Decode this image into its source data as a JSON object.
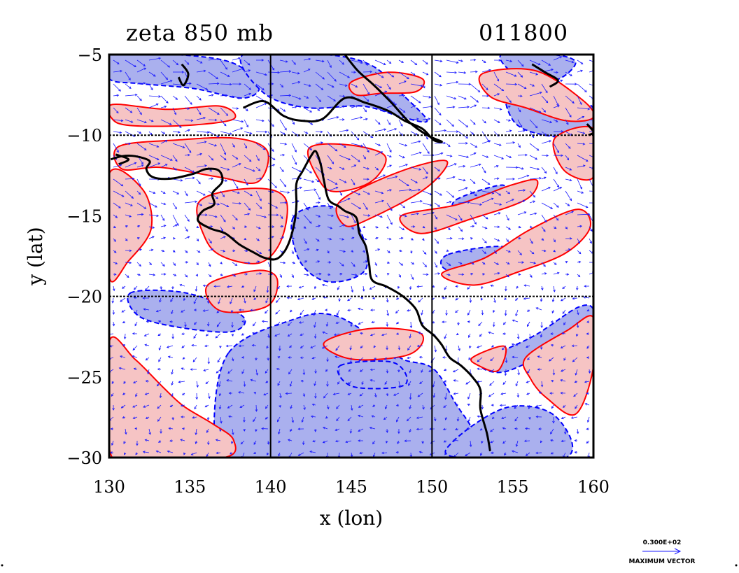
{
  "title": {
    "field": "zeta 850 mb",
    "time": "011800"
  },
  "axes": {
    "xlabel": "x (lon)",
    "ylabel": "y (lat)",
    "xlim": [
      130,
      160
    ],
    "ylim": [
      -30,
      -5
    ],
    "xticks": [
      "130",
      "135",
      "140",
      "145",
      "150",
      "155",
      "160"
    ],
    "yticks": [
      "−5",
      "−10",
      "−15",
      "−20",
      "−25",
      "−30"
    ],
    "grid_lon": [
      140,
      150
    ],
    "grid_lat": [
      -10,
      -20
    ]
  },
  "legend": {
    "value": "0.300E+02",
    "caption": "MAXIMUM VECTOR"
  },
  "colors": {
    "positive_fill": "#f6c4c4",
    "positive_line": "#ff0000",
    "negative_fill": "#aab0ee",
    "negative_line": "#0000ff",
    "vector": "#1a1aff",
    "coast": "#000000"
  },
  "coastline": [
    [
      130.1,
      -11.5
    ],
    [
      130.8,
      -11.3
    ],
    [
      131.6,
      -11.3
    ],
    [
      132.5,
      -11.6
    ],
    [
      132.3,
      -12.1
    ],
    [
      132.7,
      -12.6
    ],
    [
      133.8,
      -12.7
    ],
    [
      135.2,
      -12.4
    ],
    [
      136.0,
      -12.1
    ],
    [
      136.8,
      -12.2
    ],
    [
      137.0,
      -12.9
    ],
    [
      136.4,
      -13.6
    ],
    [
      136.5,
      -14.3
    ],
    [
      135.8,
      -14.7
    ],
    [
      135.5,
      -15.3
    ],
    [
      136.3,
      -15.8
    ],
    [
      137.2,
      -16.1
    ],
    [
      138.1,
      -16.8
    ],
    [
      139.0,
      -17.3
    ],
    [
      139.6,
      -17.6
    ],
    [
      140.3,
      -17.7
    ],
    [
      140.8,
      -17.3
    ],
    [
      141.2,
      -16.5
    ],
    [
      141.5,
      -15.3
    ],
    [
      141.6,
      -14.3
    ],
    [
      141.6,
      -13.0
    ],
    [
      142.0,
      -12.2
    ],
    [
      142.5,
      -11.3
    ],
    [
      142.8,
      -11.0
    ],
    [
      143.1,
      -11.8
    ],
    [
      143.3,
      -12.8
    ],
    [
      143.6,
      -14.0
    ],
    [
      144.2,
      -14.4
    ],
    [
      144.6,
      -14.7
    ],
    [
      145.3,
      -15.1
    ],
    [
      145.5,
      -16.1
    ],
    [
      145.9,
      -16.9
    ],
    [
      146.1,
      -18.0
    ],
    [
      146.3,
      -19.0
    ],
    [
      147.2,
      -19.4
    ],
    [
      148.2,
      -20.0
    ],
    [
      149.0,
      -20.8
    ],
    [
      149.4,
      -21.8
    ],
    [
      150.1,
      -22.4
    ],
    [
      150.6,
      -23.0
    ],
    [
      151.1,
      -23.8
    ],
    [
      151.8,
      -24.3
    ],
    [
      152.5,
      -25.0
    ],
    [
      153.0,
      -25.8
    ],
    [
      153.0,
      -27.0
    ],
    [
      153.4,
      -28.5
    ],
    [
      153.6,
      -29.6
    ]
  ],
  "png_coast": [
    [
      138.3,
      -8.3
    ],
    [
      139.6,
      -7.9
    ],
    [
      140.8,
      -8.8
    ],
    [
      141.9,
      -9.1
    ],
    [
      143.2,
      -9.0
    ],
    [
      144.6,
      -7.7
    ],
    [
      145.9,
      -8.0
    ],
    [
      147.3,
      -8.5
    ],
    [
      148.3,
      -9.1
    ],
    [
      149.4,
      -9.6
    ],
    [
      150.1,
      -10.3
    ],
    [
      150.6,
      -10.4
    ],
    [
      149.7,
      -10.0
    ],
    [
      148.6,
      -9.2
    ],
    [
      147.5,
      -8.0
    ],
    [
      146.4,
      -6.9
    ],
    [
      145.4,
      -6.0
    ],
    [
      144.6,
      -5.0
    ]
  ],
  "island_coasts": [
    [
      [
        134.5,
        -5.6
      ],
      [
        134.9,
        -6.2
      ],
      [
        134.6,
        -6.9
      ],
      [
        134.3,
        -6.4
      ]
    ],
    [
      [
        156.2,
        -5.6
      ],
      [
        157.0,
        -6.1
      ],
      [
        157.8,
        -6.6
      ],
      [
        157.3,
        -7.0
      ]
    ],
    [
      [
        159.6,
        -9.3
      ],
      [
        160.0,
        -9.8
      ],
      [
        159.7,
        -10.0
      ]
    ],
    [
      [
        130.4,
        -11.2
      ],
      [
        131.2,
        -11.5
      ],
      [
        130.6,
        -11.8
      ]
    ]
  ],
  "positive_regions": [
    [
      [
        130.6,
        -10.7
      ],
      [
        134.2,
        -10.3
      ],
      [
        137.9,
        -10.2
      ],
      [
        139.8,
        -11.0
      ],
      [
        139.2,
        -12.9
      ],
      [
        136.8,
        -12.6
      ],
      [
        133.2,
        -12.0
      ],
      [
        130.8,
        -12.1
      ]
    ],
    [
      [
        130.0,
        -12.4
      ],
      [
        132.1,
        -13.4
      ],
      [
        132.6,
        -15.8
      ],
      [
        131.2,
        -17.8
      ],
      [
        130.0,
        -18.8
      ]
    ],
    [
      [
        135.6,
        -14.1
      ],
      [
        138.8,
        -13.3
      ],
      [
        140.9,
        -13.9
      ],
      [
        140.7,
        -16.4
      ],
      [
        139.4,
        -17.9
      ],
      [
        137.2,
        -17.6
      ],
      [
        136.0,
        -16.5
      ]
    ],
    [
      [
        136.1,
        -19.3
      ],
      [
        139.1,
        -18.4
      ],
      [
        140.4,
        -18.9
      ],
      [
        139.8,
        -20.6
      ],
      [
        136.9,
        -20.9
      ]
    ],
    [
      [
        142.4,
        -10.8
      ],
      [
        144.8,
        -10.6
      ],
      [
        147.1,
        -11.3
      ],
      [
        146.2,
        -12.9
      ],
      [
        143.9,
        -13.5
      ],
      [
        142.9,
        -12.6
      ]
    ],
    [
      [
        144.3,
        -14.1
      ],
      [
        147.9,
        -12.3
      ],
      [
        150.9,
        -11.6
      ],
      [
        149.6,
        -13.3
      ],
      [
        146.1,
        -15.2
      ],
      [
        144.6,
        -15.6
      ]
    ],
    [
      [
        148.1,
        -15.0
      ],
      [
        151.6,
        -14.3
      ],
      [
        154.9,
        -13.1
      ],
      [
        156.5,
        -12.8
      ],
      [
        155.8,
        -14.0
      ],
      [
        152.4,
        -15.2
      ],
      [
        149.3,
        -16.1
      ]
    ],
    [
      [
        150.6,
        -18.6
      ],
      [
        153.3,
        -17.6
      ],
      [
        156.0,
        -15.9
      ],
      [
        159.0,
        -14.6
      ],
      [
        159.8,
        -15.7
      ],
      [
        158.3,
        -17.3
      ],
      [
        155.3,
        -18.5
      ],
      [
        152.6,
        -19.3
      ]
    ],
    [
      [
        143.3,
        -22.9
      ],
      [
        146.1,
        -22.0
      ],
      [
        149.3,
        -22.3
      ],
      [
        148.6,
        -23.6
      ],
      [
        145.1,
        -23.9
      ]
    ],
    [
      [
        152.5,
        -23.8
      ],
      [
        154.5,
        -23.1
      ],
      [
        154.1,
        -24.6
      ],
      [
        152.9,
        -24.3
      ]
    ],
    [
      [
        155.8,
        -23.8
      ],
      [
        158.4,
        -22.1
      ],
      [
        160.0,
        -21.3
      ],
      [
        160.0,
        -24.4
      ],
      [
        158.9,
        -27.3
      ],
      [
        157.1,
        -26.3
      ],
      [
        156.1,
        -25.1
      ]
    ],
    [
      [
        130.0,
        -22.8
      ],
      [
        131.6,
        -23.9
      ],
      [
        133.3,
        -25.6
      ],
      [
        134.6,
        -26.8
      ],
      [
        136.4,
        -27.9
      ],
      [
        137.7,
        -28.9
      ],
      [
        137.1,
        -30.0
      ],
      [
        131.5,
        -30.0
      ],
      [
        130.0,
        -29.4
      ]
    ],
    [
      [
        145.0,
        -6.7
      ],
      [
        147.3,
        -6.1
      ],
      [
        149.4,
        -6.5
      ],
      [
        149.0,
        -7.3
      ],
      [
        146.9,
        -7.4
      ],
      [
        145.3,
        -7.5
      ]
    ],
    [
      [
        153.1,
        -6.2
      ],
      [
        156.4,
        -6.0
      ],
      [
        159.3,
        -7.8
      ],
      [
        160.0,
        -8.9
      ],
      [
        158.3,
        -9.1
      ],
      [
        155.8,
        -8.3
      ],
      [
        153.6,
        -7.6
      ]
    ],
    [
      [
        130.2,
        -8.1
      ],
      [
        133.6,
        -8.4
      ],
      [
        136.9,
        -8.2
      ],
      [
        137.7,
        -9.0
      ],
      [
        134.7,
        -9.4
      ],
      [
        131.3,
        -9.4
      ],
      [
        130.2,
        -9.0
      ]
    ],
    [
      [
        157.6,
        -10.2
      ],
      [
        160.0,
        -9.6
      ],
      [
        160.0,
        -12.6
      ],
      [
        158.2,
        -12.2
      ]
    ]
  ],
  "negative_regions": [
    [
      [
        130.0,
        -5.0
      ],
      [
        134.1,
        -5.0
      ],
      [
        137.6,
        -5.5
      ],
      [
        139.3,
        -6.9
      ],
      [
        138.3,
        -7.7
      ],
      [
        135.2,
        -7.1
      ],
      [
        131.9,
        -6.8
      ],
      [
        130.0,
        -6.5
      ]
    ],
    [
      [
        138.3,
        -5.0
      ],
      [
        143.4,
        -5.0
      ],
      [
        146.3,
        -5.7
      ],
      [
        148.2,
        -7.5
      ],
      [
        149.7,
        -9.1
      ],
      [
        148.2,
        -8.9
      ],
      [
        145.7,
        -8.2
      ],
      [
        142.3,
        -8.3
      ],
      [
        139.6,
        -7.4
      ]
    ],
    [
      [
        154.3,
        -5.0
      ],
      [
        157.5,
        -5.0
      ],
      [
        158.9,
        -5.5
      ],
      [
        157.6,
        -6.6
      ],
      [
        155.3,
        -6.3
      ]
    ],
    [
      [
        141.4,
        -15.1
      ],
      [
        143.6,
        -14.4
      ],
      [
        145.4,
        -15.6
      ],
      [
        145.9,
        -18.3
      ],
      [
        143.6,
        -19.1
      ],
      [
        141.8,
        -17.8
      ]
    ],
    [
      [
        151.0,
        -17.4
      ],
      [
        154.3,
        -16.9
      ],
      [
        155.9,
        -17.6
      ],
      [
        153.1,
        -18.6
      ],
      [
        150.8,
        -18.3
      ]
    ],
    [
      [
        151.5,
        -14.0
      ],
      [
        154.4,
        -13.1
      ],
      [
        154.1,
        -14.3
      ],
      [
        151.7,
        -14.8
      ]
    ],
    [
      [
        131.3,
        -19.8
      ],
      [
        134.2,
        -19.7
      ],
      [
        136.7,
        -20.4
      ],
      [
        138.4,
        -21.4
      ],
      [
        137.5,
        -22.2
      ],
      [
        134.2,
        -21.9
      ],
      [
        131.8,
        -21.2
      ]
    ],
    [
      [
        137.4,
        -23.5
      ],
      [
        141.5,
        -21.4
      ],
      [
        144.0,
        -21.2
      ],
      [
        146.7,
        -22.8
      ],
      [
        148.2,
        -23.9
      ],
      [
        150.1,
        -24.5
      ],
      [
        151.5,
        -26.7
      ],
      [
        152.5,
        -28.3
      ],
      [
        152.7,
        -30.0
      ],
      [
        137.4,
        -30.0
      ],
      [
        136.5,
        -28.3
      ]
    ],
    [
      [
        144.3,
        -24.3
      ],
      [
        147.6,
        -24.1
      ],
      [
        148.3,
        -25.5
      ],
      [
        145.1,
        -25.6
      ]
    ],
    [
      [
        153.1,
        -24.1
      ],
      [
        156.4,
        -22.4
      ],
      [
        159.0,
        -20.7
      ],
      [
        160.0,
        -20.8
      ],
      [
        159.9,
        -22.4
      ],
      [
        157.2,
        -23.5
      ],
      [
        154.4,
        -24.7
      ]
    ],
    [
      [
        151.3,
        -29.0
      ],
      [
        154.6,
        -26.9
      ],
      [
        157.6,
        -27.4
      ],
      [
        158.3,
        -30.0
      ],
      [
        151.6,
        -30.0
      ]
    ],
    [
      [
        130.0,
        -25.5
      ],
      [
        132.1,
        -26.2
      ],
      [
        133.1,
        -28.2
      ],
      [
        133.4,
        -30.0
      ],
      [
        130.0,
        -30.0
      ]
    ],
    [
      [
        154.6,
        -7.2
      ],
      [
        156.8,
        -7.6
      ],
      [
        158.2,
        -8.6
      ],
      [
        159.9,
        -8.2
      ],
      [
        160.0,
        -10.0
      ],
      [
        157.6,
        -10.1
      ],
      [
        155.2,
        -9.3
      ]
    ]
  ]
}
